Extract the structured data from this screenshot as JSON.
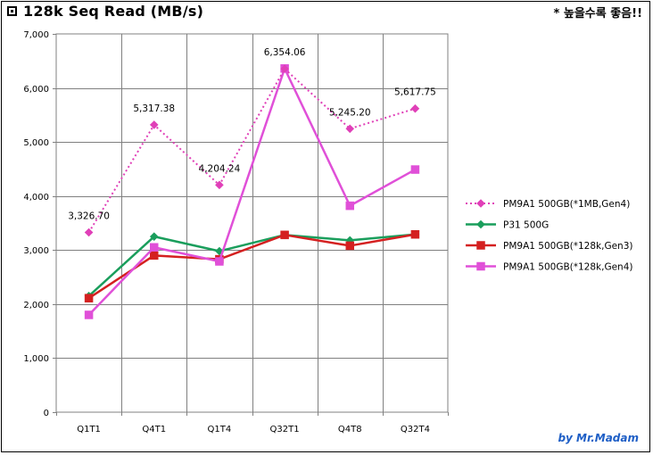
{
  "header": {
    "title": "128k Seq Read (MB/s)",
    "note": "* 높을수록 좋음!!"
  },
  "footer": {
    "credit": "by Mr.Madam"
  },
  "chart_data": {
    "type": "line",
    "title": "128k Seq Read (MB/s)",
    "xlabel": "",
    "ylabel": "",
    "categories": [
      "Q1T1",
      "Q4T1",
      "Q1T4",
      "Q32T1",
      "Q4T8",
      "Q32T4"
    ],
    "ylim": [
      0,
      7000
    ],
    "ytick_step": 1000,
    "ytick_labels": [
      "0",
      "1,000",
      "2,000",
      "3,000",
      "4,000",
      "5,000",
      "6,000",
      "7,000"
    ],
    "grid": true,
    "legend_position": "right",
    "series": [
      {
        "name": "PM9A1 500GB(*1MB,Gen4)",
        "color": "#e040b8",
        "line_style": "dotted",
        "marker": "diamond",
        "values": [
          3326.7,
          5317.38,
          4204.24,
          6354.06,
          5245.2,
          5617.75
        ],
        "data_labels": [
          "3,326.70",
          "5,317.38",
          "4,204.24",
          "6,354.06",
          "5,245.20",
          "5,617.75"
        ]
      },
      {
        "name": "P31 500G",
        "color": "#1a9e5c",
        "line_style": "solid",
        "marker": "diamond",
        "values": [
          2150,
          3250,
          2980,
          3280,
          3180,
          3290
        ],
        "data_labels": []
      },
      {
        "name": "PM9A1 500GB(*128k,Gen3)",
        "color": "#d42020",
        "line_style": "solid",
        "marker": "square",
        "values": [
          2110,
          2900,
          2830,
          3280,
          3080,
          3290
        ],
        "data_labels": []
      },
      {
        "name": "PM9A1 500GB(*128k,Gen4)",
        "color": "#e050d8",
        "line_style": "solid",
        "marker": "square",
        "values": [
          1800,
          3050,
          2790,
          6360,
          3820,
          4490
        ],
        "data_labels": []
      }
    ]
  }
}
